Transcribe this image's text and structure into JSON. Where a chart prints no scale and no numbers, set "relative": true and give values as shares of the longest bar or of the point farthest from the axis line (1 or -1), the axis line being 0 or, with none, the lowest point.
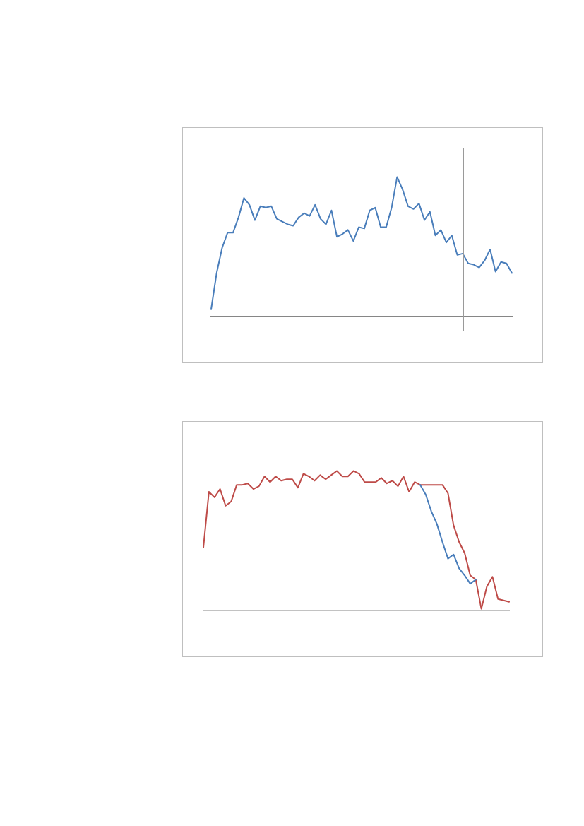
{
  "chart_data": [
    {
      "type": "line",
      "relative": true,
      "categories": [
        null,
        null,
        null,
        null,
        null,
        null,
        null,
        null,
        null,
        null,
        null,
        null,
        null,
        null,
        null,
        null,
        null,
        null,
        null,
        null,
        null,
        null,
        null,
        null,
        null,
        null,
        null,
        null,
        null,
        null,
        null,
        null,
        null,
        null,
        null,
        null,
        null,
        null,
        null,
        null,
        null,
        null,
        null,
        null,
        null,
        null,
        null,
        null,
        null,
        null,
        null,
        null,
        null,
        null,
        null,
        null
      ],
      "series": [
        {
          "color": "#4a7ebb",
          "values": [
            0.05,
            0.31,
            0.49,
            0.6,
            0.6,
            0.71,
            0.85,
            0.8,
            0.69,
            0.79,
            0.78,
            0.79,
            0.7,
            0.68,
            0.66,
            0.65,
            0.71,
            0.74,
            0.72,
            0.8,
            0.7,
            0.66,
            0.76,
            0.57,
            0.59,
            0.62,
            0.54,
            0.64,
            0.63,
            0.76,
            0.78,
            0.64,
            0.64,
            0.78,
            1,
            0.91,
            0.79,
            0.77,
            0.81,
            0.69,
            0.75,
            0.58,
            0.62,
            0.53,
            0.58,
            0.44,
            0.45,
            0.38,
            0.37,
            0.35,
            0.4,
            0.48,
            0.32,
            0.39,
            0.38,
            0.31
          ]
        }
      ],
      "marker": "none",
      "line_style": "solid",
      "grid": false
    },
    {
      "type": "line",
      "relative": true,
      "categories": [
        null,
        null,
        null,
        null,
        null,
        null,
        null,
        null,
        null,
        null,
        null,
        null,
        null,
        null,
        null,
        null,
        null,
        null,
        null,
        null,
        null,
        null,
        null,
        null,
        null,
        null,
        null,
        null,
        null,
        null,
        null,
        null,
        null,
        null,
        null,
        null,
        null,
        null,
        null,
        null,
        null,
        null,
        null,
        null,
        null,
        null,
        null,
        null,
        null,
        null,
        null,
        null,
        null,
        null,
        null,
        null
      ],
      "series": [
        {
          "color": "#4a7ebb",
          "values": [
            null,
            null,
            null,
            null,
            null,
            null,
            null,
            null,
            null,
            null,
            null,
            null,
            null,
            null,
            null,
            null,
            null,
            null,
            null,
            null,
            null,
            null,
            null,
            null,
            null,
            null,
            null,
            null,
            null,
            null,
            null,
            null,
            null,
            null,
            null,
            null,
            null,
            null,
            null,
            0.9,
            0.83,
            0.71,
            0.62,
            0.49,
            0.37,
            0.4,
            0.3,
            0.25,
            0.19,
            0.22,
            null,
            null,
            null,
            null,
            null,
            null
          ]
        },
        {
          "color": "#be4b48",
          "values": [
            0.45,
            0.85,
            0.81,
            0.87,
            0.75,
            0.78,
            0.9,
            0.9,
            0.91,
            0.87,
            0.89,
            0.96,
            0.92,
            0.96,
            0.93,
            0.94,
            0.94,
            0.88,
            0.98,
            0.96,
            0.93,
            0.97,
            0.94,
            0.97,
            1,
            0.96,
            0.96,
            1,
            0.98,
            0.92,
            0.92,
            0.92,
            0.95,
            0.91,
            0.93,
            0.89,
            0.96,
            0.85,
            0.92,
            0.9,
            0.9,
            0.9,
            0.9,
            0.9,
            0.84,
            0.61,
            0.49,
            0.41,
            0.25,
            0.22,
            0.01,
            0.17,
            0.24,
            0.08,
            0.07,
            0.06
          ]
        }
      ],
      "marker": "none",
      "line_style": "solid",
      "grid": false
    }
  ]
}
